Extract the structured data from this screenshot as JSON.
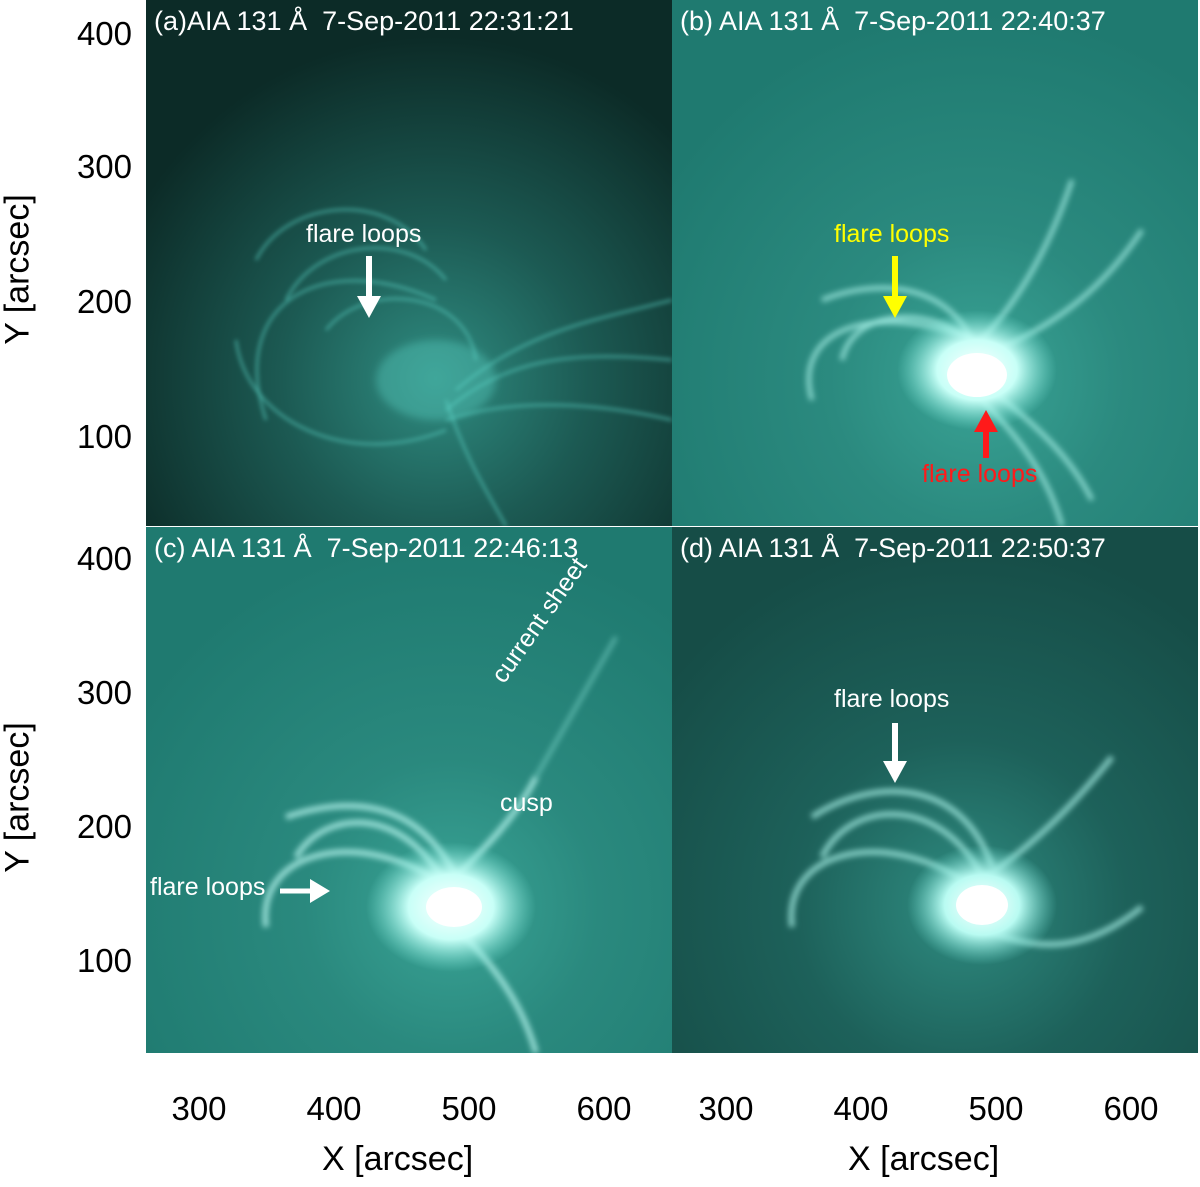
{
  "figure": {
    "panels": [
      {
        "id": "a",
        "title": "(a)AIA 131 Å  7-Sep-2011 22:31:21",
        "brightness": "low",
        "annotations": [
          {
            "text": "flare loops",
            "color": "#ffffff",
            "arrow_direction": "down"
          }
        ]
      },
      {
        "id": "b",
        "title": "(b) AIA 131 Å  7-Sep-2011 22:40:37",
        "brightness": "high",
        "annotations": [
          {
            "text": "flare loops",
            "color": "#ffff00",
            "arrow_direction": "down"
          },
          {
            "text": "flare loops",
            "color": "#ff1a1a",
            "arrow_direction": "up"
          }
        ]
      },
      {
        "id": "c",
        "title": "(c) AIA 131 Å  7-Sep-2011 22:46:13",
        "brightness": "high",
        "annotations": [
          {
            "text": "current sheet",
            "color": "#ffffff"
          },
          {
            "text": "cusp",
            "color": "#ffffff"
          },
          {
            "text": "flare loops",
            "color": "#ffffff",
            "arrow_direction": "right"
          }
        ]
      },
      {
        "id": "d",
        "title": "(d) AIA 131 Å  7-Sep-2011 22:50:37",
        "brightness": "medium",
        "annotations": [
          {
            "text": "flare loops",
            "color": "#ffffff",
            "arrow_direction": "down"
          }
        ]
      }
    ],
    "y_axis": {
      "label": "Y [arcsec]",
      "ticks": [
        "400",
        "300",
        "200",
        "100"
      ]
    },
    "x_axis": {
      "label": "X [arcsec]",
      "ticks": [
        "300",
        "400",
        "500",
        "600"
      ]
    },
    "colors": {
      "colormap_dark": "#0b2a26",
      "colormap_mid": "#1f7f74",
      "colormap_bright": "#9ffff2"
    }
  }
}
